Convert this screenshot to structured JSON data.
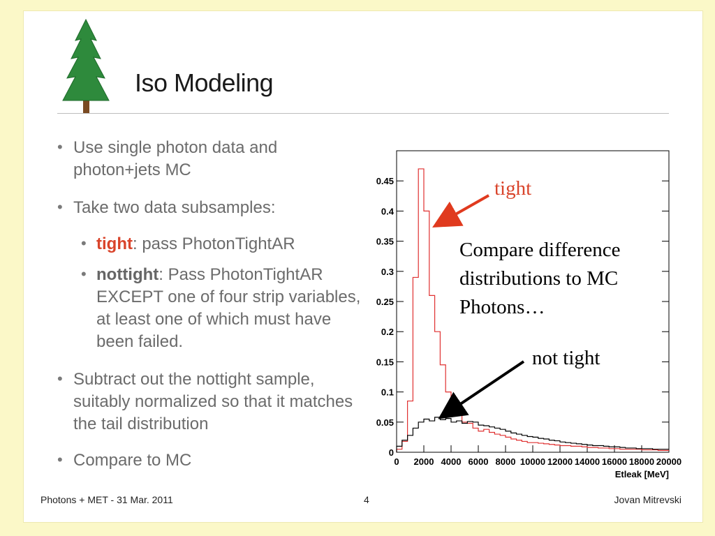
{
  "slide": {
    "title": "Iso Modeling",
    "bullets": [
      {
        "level": 1,
        "text": "Use single photon data and photon+jets MC"
      },
      {
        "level": 1,
        "text": "Take two data subsamples:"
      },
      {
        "level": 2,
        "prefix": "tight",
        "text": ": pass PhotonTightAR"
      },
      {
        "level": 2,
        "prefix": "nottight",
        "text": ": Pass PhotonTightAR EXCEPT one of four strip variables, at least one of which must have been failed."
      },
      {
        "level": 1,
        "text": "Subtract out the nottight sample, suitably normalized so that it matches the tail distribution"
      },
      {
        "level": 1,
        "text": "Compare to MC"
      }
    ],
    "annotations": {
      "tight_label": "tight",
      "not_tight_label": "not tight",
      "compare_text": "Compare difference distributions to MC Photons…"
    },
    "footer": {
      "left": "Photons + MET - 31 Mar. 2011",
      "center": "4",
      "right": "Jovan Mitrevski"
    },
    "colors": {
      "tight_line": "#e03030",
      "nottight_line": "#000000",
      "tight_text": "#d9442b",
      "background": "#fbf8c8"
    }
  },
  "chart_data": {
    "type": "line",
    "xlabel": "Etleak [MeV]",
    "ylabel": "",
    "xlim": [
      0,
      20000
    ],
    "ylim": [
      0,
      0.5
    ],
    "x_ticks": [
      "0",
      "2000",
      "4000",
      "6000",
      "8000",
      "10000",
      "12000",
      "14000",
      "16000",
      "18000",
      "20000"
    ],
    "y_ticks": [
      "0",
      "0.05",
      "0.1",
      "0.15",
      "0.2",
      "0.25",
      "0.3",
      "0.35",
      "0.4",
      "0.45"
    ],
    "x": [
      200,
      600,
      1000,
      1400,
      1800,
      2200,
      2600,
      3000,
      3400,
      3800,
      4200,
      4600,
      5000,
      5400,
      5800,
      6200,
      6600,
      7000,
      7400,
      7800,
      8200,
      8600,
      9000,
      9400,
      9800,
      10200,
      10600,
      11000,
      11400,
      11800,
      12200,
      12600,
      13000,
      13400,
      13800,
      14200,
      14600,
      15000,
      15400,
      15800,
      16200,
      16600,
      17000,
      17400,
      17800,
      18200,
      18600,
      19000,
      19400,
      19800
    ],
    "series": [
      {
        "name": "tight",
        "values": [
          0.005,
          0.018,
          0.085,
          0.29,
          0.47,
          0.4,
          0.26,
          0.2,
          0.145,
          0.1,
          0.08,
          0.065,
          0.05,
          0.048,
          0.04,
          0.035,
          0.038,
          0.033,
          0.03,
          0.028,
          0.025,
          0.022,
          0.02,
          0.018,
          0.016,
          0.016,
          0.015,
          0.014,
          0.013,
          0.012,
          0.011,
          0.011,
          0.01,
          0.01,
          0.009,
          0.008,
          0.008,
          0.007,
          0.007,
          0.006,
          0.006,
          0.005,
          0.005,
          0.005,
          0.005,
          0.004,
          0.004,
          0.004,
          0.003,
          0.003
        ]
      },
      {
        "name": "not tight",
        "values": [
          0.01,
          0.02,
          0.028,
          0.04,
          0.05,
          0.055,
          0.052,
          0.058,
          0.054,
          0.056,
          0.05,
          0.052,
          0.048,
          0.051,
          0.05,
          0.045,
          0.044,
          0.042,
          0.04,
          0.038,
          0.035,
          0.032,
          0.03,
          0.028,
          0.026,
          0.025,
          0.023,
          0.022,
          0.02,
          0.019,
          0.017,
          0.016,
          0.015,
          0.014,
          0.013,
          0.012,
          0.011,
          0.011,
          0.01,
          0.009,
          0.009,
          0.008,
          0.007,
          0.007,
          0.006,
          0.006,
          0.006,
          0.005,
          0.005,
          0.005
        ]
      }
    ]
  }
}
